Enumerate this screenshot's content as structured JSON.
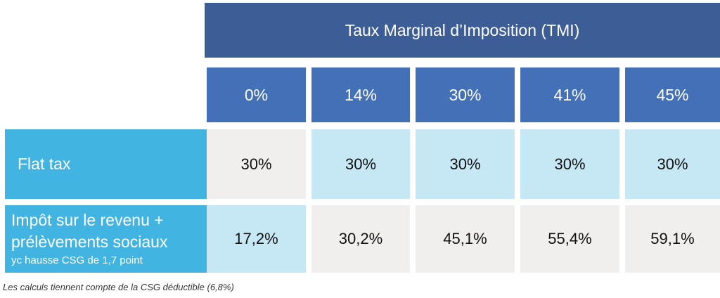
{
  "table": {
    "super_header": "Taux Marginal d’Imposition (TMI)",
    "columns": [
      "0%",
      "14%",
      "30%",
      "41%",
      "45%"
    ],
    "rows": [
      {
        "label_lines": [
          "Flat tax"
        ],
        "sublabel": "",
        "values": [
          "30%",
          "30%",
          "30%",
          "30%",
          "30%"
        ]
      },
      {
        "label_lines": [
          "Impôt sur le revenu +",
          "prélèvements sociaux"
        ],
        "sublabel": "yc hausse CSG de 1,7 point",
        "values": [
          "17,2%",
          "30,2%",
          "45,1%",
          "55,4%",
          "59,1%"
        ]
      }
    ],
    "footnote": "Les calculs tiennent compte de la CSG déductible (6,8%)"
  },
  "colors": {
    "super_header_bg": "#3d5d96",
    "column_header_bg": "#4470b8",
    "row_label_bg": "#42b4e2",
    "cell_light_blue": "#c6e7f4",
    "cell_beige": "#f1efed"
  }
}
